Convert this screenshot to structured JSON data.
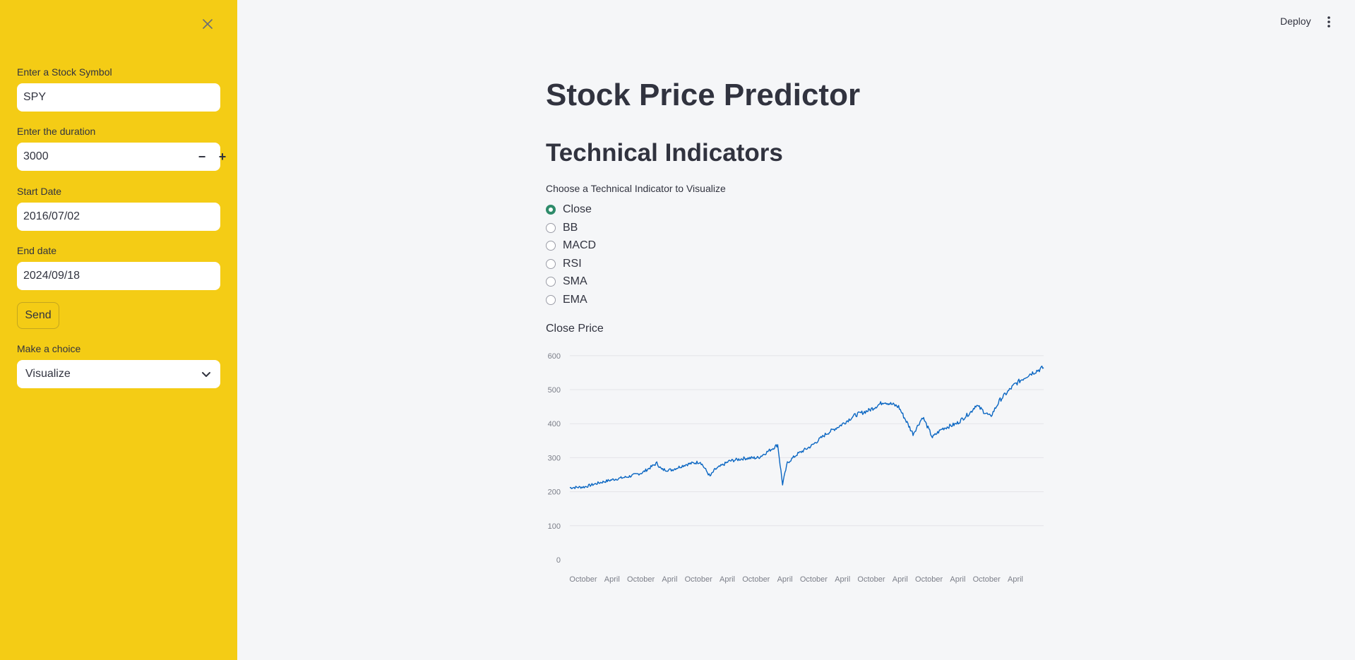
{
  "sidebar": {
    "close_icon": "close-icon",
    "stock_symbol": {
      "label": "Enter a Stock Symbol",
      "value": "SPY"
    },
    "duration": {
      "label": "Enter the duration",
      "value": "3000",
      "minus": "−",
      "plus": "+"
    },
    "start_date": {
      "label": "Start Date",
      "value": "2016/07/02"
    },
    "end_date": {
      "label": "End date",
      "value": "2024/09/18"
    },
    "send_label": "Send",
    "choice": {
      "label": "Make a choice",
      "value": "Visualize"
    }
  },
  "header": {
    "deploy_label": "Deploy",
    "menu_icon": "kebab-menu-icon"
  },
  "main": {
    "title": "Stock Price Predictor",
    "subtitle": "Technical Indicators",
    "radio_label": "Choose a Technical Indicator to Visualize",
    "options": [
      "Close",
      "BB",
      "MACD",
      "RSI",
      "SMA",
      "EMA"
    ],
    "selected": "Close"
  },
  "colors": {
    "sidebar_bg": "#f4cc15",
    "main_bg": "#f5f6f8",
    "accent": "#2e8b6a",
    "line": "#0a66c2"
  },
  "chart_data": {
    "type": "line",
    "title": "Close Price",
    "xlabel": "",
    "ylabel": "",
    "x_tick_labels": [
      "October",
      "April",
      "October",
      "April",
      "October",
      "April",
      "October",
      "April",
      "October",
      "April",
      "October",
      "April",
      "October",
      "April",
      "October",
      "April"
    ],
    "yticks": [
      0,
      100,
      200,
      300,
      400,
      500,
      600
    ],
    "ylim": [
      0,
      610
    ],
    "grid": true,
    "series": [
      {
        "x": [
          "2016-07",
          "2016-10",
          "2017-01",
          "2017-04",
          "2017-07",
          "2017-10",
          "2018-01",
          "2018-02",
          "2018-04",
          "2018-07",
          "2018-10",
          "2018-12",
          "2019-01",
          "2019-04",
          "2019-07",
          "2019-10",
          "2020-01",
          "2020-02",
          "2020-03",
          "2020-04",
          "2020-06",
          "2020-09",
          "2020-12",
          "2021-03",
          "2021-06",
          "2021-09",
          "2021-12",
          "2022-01",
          "2022-03",
          "2022-06",
          "2022-08",
          "2022-10",
          "2022-12",
          "2023-03",
          "2023-06",
          "2023-07",
          "2023-10",
          "2023-12",
          "2024-03",
          "2024-06",
          "2024-09"
        ],
        "values": [
          212,
          214,
          226,
          236,
          244,
          256,
          284,
          265,
          264,
          280,
          288,
          245,
          265,
          290,
          298,
          300,
          328,
          338,
          222,
          285,
          310,
          335,
          370,
          395,
          425,
          440,
          465,
          460,
          450,
          370,
          420,
          360,
          385,
          400,
          435,
          455,
          420,
          470,
          515,
          545,
          565
        ]
      }
    ]
  }
}
